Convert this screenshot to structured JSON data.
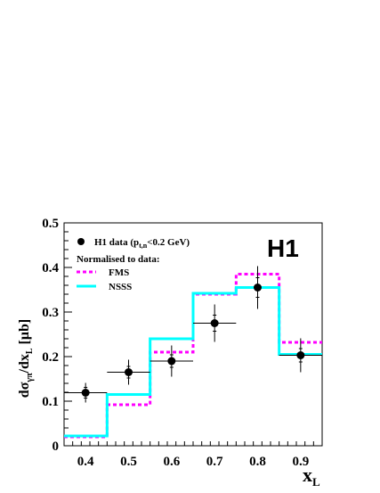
{
  "chart_data": {
    "type": "line",
    "xlabel": "x",
    "xlabel_sub": "L",
    "ylabel_parts": {
      "d1": "dσ",
      "sub1": "γπ",
      "mid": "/dx",
      "sub2": "L",
      "unit": " [μb]"
    },
    "xlim": [
      0.35,
      0.95
    ],
    "ylim": [
      0,
      0.5
    ],
    "x_ticks": [
      "0.4",
      "0.5",
      "0.6",
      "0.7",
      "0.8",
      "0.9"
    ],
    "y_ticks": [
      "0",
      "0.1",
      "0.2",
      "0.3",
      "0.4",
      "0.5"
    ],
    "experiment_mark": "H1",
    "legend": {
      "placement": "top-left",
      "data_label_prefix": "H1 data (p",
      "data_label_sub": "t,n",
      "data_label_suffix": "<0.2 GeV)",
      "header": "Normalised to data:",
      "entries": [
        "FMS",
        "NSSS"
      ]
    },
    "data_points": [
      {
        "x": 0.4,
        "y": 0.119,
        "xerr": 0.05,
        "yerr_stat": 0.012,
        "yerr_tot": 0.022
      },
      {
        "x": 0.5,
        "y": 0.165,
        "xerr": 0.05,
        "yerr_stat": 0.013,
        "yerr_tot": 0.028
      },
      {
        "x": 0.6,
        "y": 0.19,
        "xerr": 0.05,
        "yerr_stat": 0.014,
        "yerr_tot": 0.035
      },
      {
        "x": 0.7,
        "y": 0.275,
        "xerr": 0.05,
        "yerr_stat": 0.018,
        "yerr_tot": 0.042
      },
      {
        "x": 0.8,
        "y": 0.355,
        "xerr": 0.0,
        "yerr_stat": 0.022,
        "yerr_tot": 0.048
      },
      {
        "x": 0.9,
        "y": 0.203,
        "xerr": 0.05,
        "yerr_stat": 0.015,
        "yerr_tot": 0.038
      }
    ],
    "series": [
      {
        "name": "FMS",
        "style": "dashed",
        "color": "#ff00ff",
        "bin_edges": [
          0.35,
          0.45,
          0.55,
          0.65,
          0.75,
          0.85,
          0.95
        ],
        "values": [
          0.02,
          0.092,
          0.21,
          0.34,
          0.385,
          0.232
        ]
      },
      {
        "name": "NSSS",
        "style": "solid",
        "color": "#00ffff",
        "bin_edges": [
          0.35,
          0.45,
          0.55,
          0.65,
          0.75,
          0.85,
          0.95
        ],
        "values": [
          0.022,
          0.115,
          0.24,
          0.342,
          0.355,
          0.205
        ]
      }
    ]
  }
}
